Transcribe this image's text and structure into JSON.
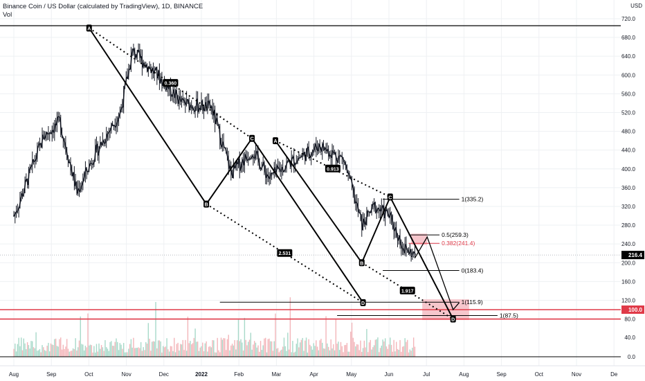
{
  "header": {
    "title": "Binance Coin / US Dollar (calculated by TradingView), 1D, BINANCE",
    "indicator": "Vol"
  },
  "axis": {
    "currency": "USD",
    "price_ticks": [
      "720.0",
      "680.0",
      "640.0",
      "600.0",
      "560.0",
      "520.0",
      "480.0",
      "440.0",
      "400.0",
      "360.0",
      "320.0",
      "280.0",
      "240.0",
      "200.0",
      "160.0",
      "120.0"
    ],
    "volume_ticks": [
      "40.0",
      "0.0"
    ],
    "month_labels": [
      "Aug",
      "Sep",
      "Oct",
      "Nov",
      "Dec",
      "2022",
      "Feb",
      "Mar",
      "Apr",
      "May",
      "Jun",
      "Jul",
      "Aug",
      "Sep",
      "Oct",
      "Nov",
      "De"
    ],
    "tags": {
      "current": "216.4",
      "support": "100.0",
      "lower": "80.0"
    }
  },
  "colors": {
    "pattern": "#000000",
    "support": "#e03a48",
    "prz_fill": "#f6c6cc",
    "candle": "#131722",
    "vol_up": "#a7d9c9",
    "vol_down": "#f3b5b9",
    "grid": "#eef0f3"
  },
  "annotations": {
    "points": [
      "A",
      "B",
      "C",
      "D",
      "A",
      "B",
      "C",
      "D"
    ],
    "ratios": [
      "0.360",
      "2.531",
      "0.913",
      "1.917"
    ],
    "fib_levels": [
      "1(335.2)",
      "0.5(259.3)",
      "0.382(241.4)",
      "0(183.4)",
      "1(115.9)",
      "1(87.5)"
    ]
  },
  "chart_data": {
    "type": "candlestick",
    "symbol": "BNBUSD",
    "timeframe": "1D",
    "x_range": [
      "2021-08",
      "2022-12"
    ],
    "y_range": [
      80,
      720
    ],
    "last_price": 216.4,
    "grid": true,
    "close_approx": [
      {
        "x": "2021-08-01",
        "y": 300
      },
      {
        "x": "2021-08-25",
        "y": 470
      },
      {
        "x": "2021-09-07",
        "y": 500
      },
      {
        "x": "2021-09-21",
        "y": 350
      },
      {
        "x": "2021-10-05",
        "y": 430
      },
      {
        "x": "2021-10-26",
        "y": 520
      },
      {
        "x": "2021-11-05",
        "y": 650
      },
      {
        "x": "2021-11-25",
        "y": 600
      },
      {
        "x": "2021-12-15",
        "y": 540
      },
      {
        "x": "2022-01-08",
        "y": 530
      },
      {
        "x": "2022-01-24",
        "y": 390
      },
      {
        "x": "2022-02-10",
        "y": 440
      },
      {
        "x": "2022-02-24",
        "y": 380
      },
      {
        "x": "2022-03-10",
        "y": 410
      },
      {
        "x": "2022-03-31",
        "y": 440
      },
      {
        "x": "2022-04-05",
        "y": 450
      },
      {
        "x": "2022-04-25",
        "y": 420
      },
      {
        "x": "2022-05-10",
        "y": 280
      },
      {
        "x": "2022-05-20",
        "y": 320
      },
      {
        "x": "2022-06-01",
        "y": 300
      },
      {
        "x": "2022-06-13",
        "y": 230
      },
      {
        "x": "2022-06-22",
        "y": 216.4
      }
    ],
    "harmonic_patterns": [
      {
        "points": [
          {
            "label": "A",
            "x": "2021-10-01",
            "y": 700
          },
          {
            "label": "B",
            "x": "2022-01-04",
            "y": 325
          },
          {
            "label": "C",
            "x": "2022-02-10",
            "y": 465
          },
          {
            "label": "D",
            "x": "2022-05-11",
            "y": 115
          }
        ],
        "ratios": [
          0.36,
          2.531
        ]
      },
      {
        "points": [
          {
            "label": "A",
            "x": "2022-03-01",
            "y": 460
          },
          {
            "label": "B",
            "x": "2022-05-10",
            "y": 200
          },
          {
            "label": "C",
            "x": "2022-06-02",
            "y": 340
          },
          {
            "label": "D",
            "x": "2022-07-23",
            "y": 80
          }
        ],
        "ratios": [
          0.913,
          1.917
        ]
      }
    ],
    "levels": [
      {
        "label": "1(335.2)",
        "y": 335.2
      },
      {
        "label": "0.5(259.3)",
        "y": 259.3
      },
      {
        "label": "0.382(241.4)",
        "y": 241.4
      },
      {
        "label": "0(183.4)",
        "y": 183.4
      },
      {
        "label": "1(115.9)",
        "y": 115.9
      },
      {
        "label": "1(87.5)",
        "y": 87.5
      },
      {
        "y": 705
      },
      {
        "y": 100
      },
      {
        "y": 80
      }
    ],
    "projection": [
      {
        "x": "2022-06-22",
        "y": 210
      },
      {
        "x": "2022-07-02",
        "y": 255
      },
      {
        "x": "2022-07-23",
        "y": 100
      },
      {
        "x": "2022-07-28",
        "y": 115
      }
    ]
  }
}
